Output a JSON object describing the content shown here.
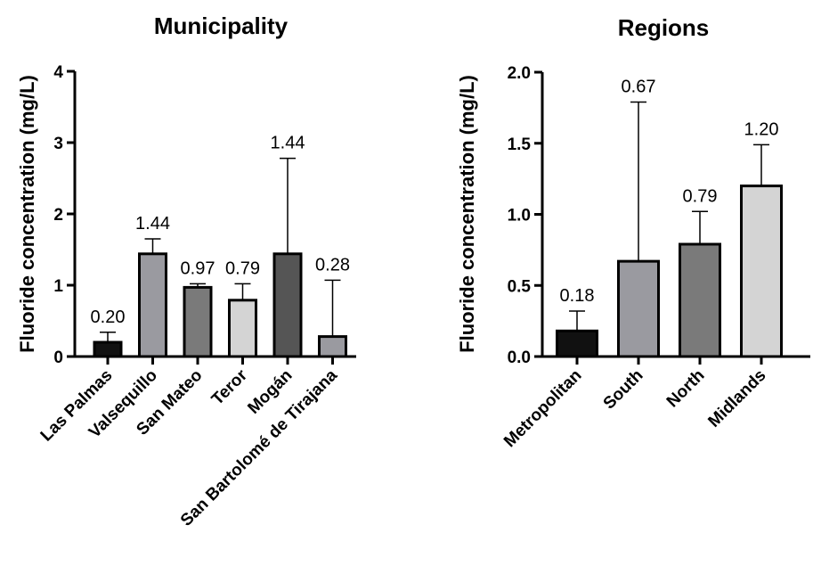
{
  "chart_data": [
    {
      "type": "bar",
      "title": "Municipality",
      "ylabel": "Fluoride concentration (mg/L)",
      "xlabel": "",
      "ylim": [
        0,
        4
      ],
      "yticks": [
        "0",
        "1",
        "2",
        "3",
        "4"
      ],
      "categories": [
        "Las Palmas",
        "Valsequillo",
        "San Mateo",
        "Teror",
        "Mogán",
        "San Bartolomé de Tirajana"
      ],
      "values": [
        0.2,
        1.44,
        0.97,
        0.79,
        1.44,
        0.28
      ],
      "data_labels": [
        "0.20",
        "1.44",
        "0.97",
        "0.79",
        "1.44",
        "0.28"
      ],
      "error_upper": [
        0.34,
        1.65,
        1.02,
        1.02,
        2.78,
        1.07
      ],
      "colors": [
        "#111111",
        "#9a9aa0",
        "#7a7a7a",
        "#d4d4d4",
        "#555555",
        "#9a9aa0"
      ],
      "grid": false
    },
    {
      "type": "bar",
      "title": "Regions",
      "ylabel": "Fluoride concentration (mg/L)",
      "xlabel": "",
      "ylim": [
        0,
        2
      ],
      "yticks": [
        "0.0",
        "0.5",
        "1.0",
        "1.5",
        "2.0"
      ],
      "categories": [
        "Metropolitan",
        "South",
        "North",
        "Midlands"
      ],
      "values": [
        0.18,
        0.67,
        0.79,
        1.2
      ],
      "data_labels": [
        "0.18",
        "0.67",
        "0.79",
        "1.20"
      ],
      "error_upper": [
        0.32,
        1.79,
        1.02,
        1.49
      ],
      "colors": [
        "#111111",
        "#9a9aa0",
        "#7a7a7a",
        "#d4d4d4"
      ],
      "grid": false
    }
  ]
}
